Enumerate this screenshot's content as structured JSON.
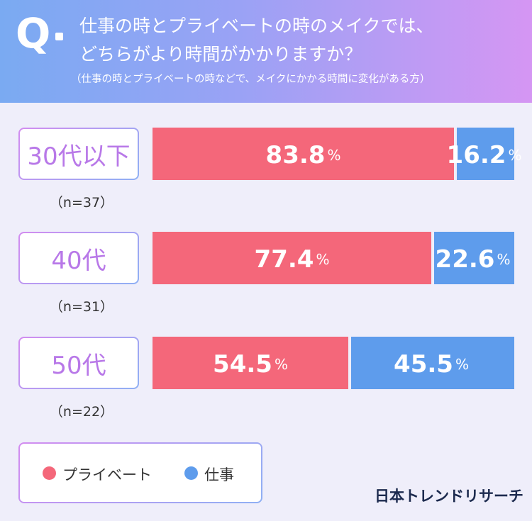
{
  "header": {
    "q_mark": "Q",
    "question_line1": "仕事の時とプライベートの時のメイクでは、",
    "question_line2": "どちらがより時間がかかりますか？",
    "note": "（仕事の時とプライベートの時などで、メイクにかかる時間に変化がある方）"
  },
  "colors": {
    "private": "#f4677a",
    "work": "#5e9cec",
    "header_start": "#7aaaf2",
    "header_end": "#d596f3",
    "background": "#efeefa"
  },
  "chart_data": {
    "type": "bar",
    "orientation": "horizontal",
    "stacked": "percent",
    "categories": [
      "30代以下",
      "40代",
      "50代"
    ],
    "sample_sizes": [
      "（n=37）",
      "（n=31）",
      "（n=22）"
    ],
    "series": [
      {
        "name": "プライベート",
        "values": [
          83.8,
          77.4,
          54.5
        ]
      },
      {
        "name": "仕事",
        "values": [
          16.2,
          22.6,
          45.5
        ]
      }
    ],
    "value_labels": {
      "private": [
        "83.8",
        "77.4",
        "54.5"
      ],
      "work": [
        "16.2",
        "22.6",
        "45.5"
      ]
    },
    "unit": "%",
    "xlim": [
      0,
      100
    ],
    "legend": {
      "position": "bottom-left",
      "items": [
        "プライベート",
        "仕事"
      ]
    }
  },
  "legend": {
    "private_label": "プライベート",
    "work_label": "仕事"
  },
  "brand": {
    "logo_text": "日本トレンドリサーチ"
  }
}
